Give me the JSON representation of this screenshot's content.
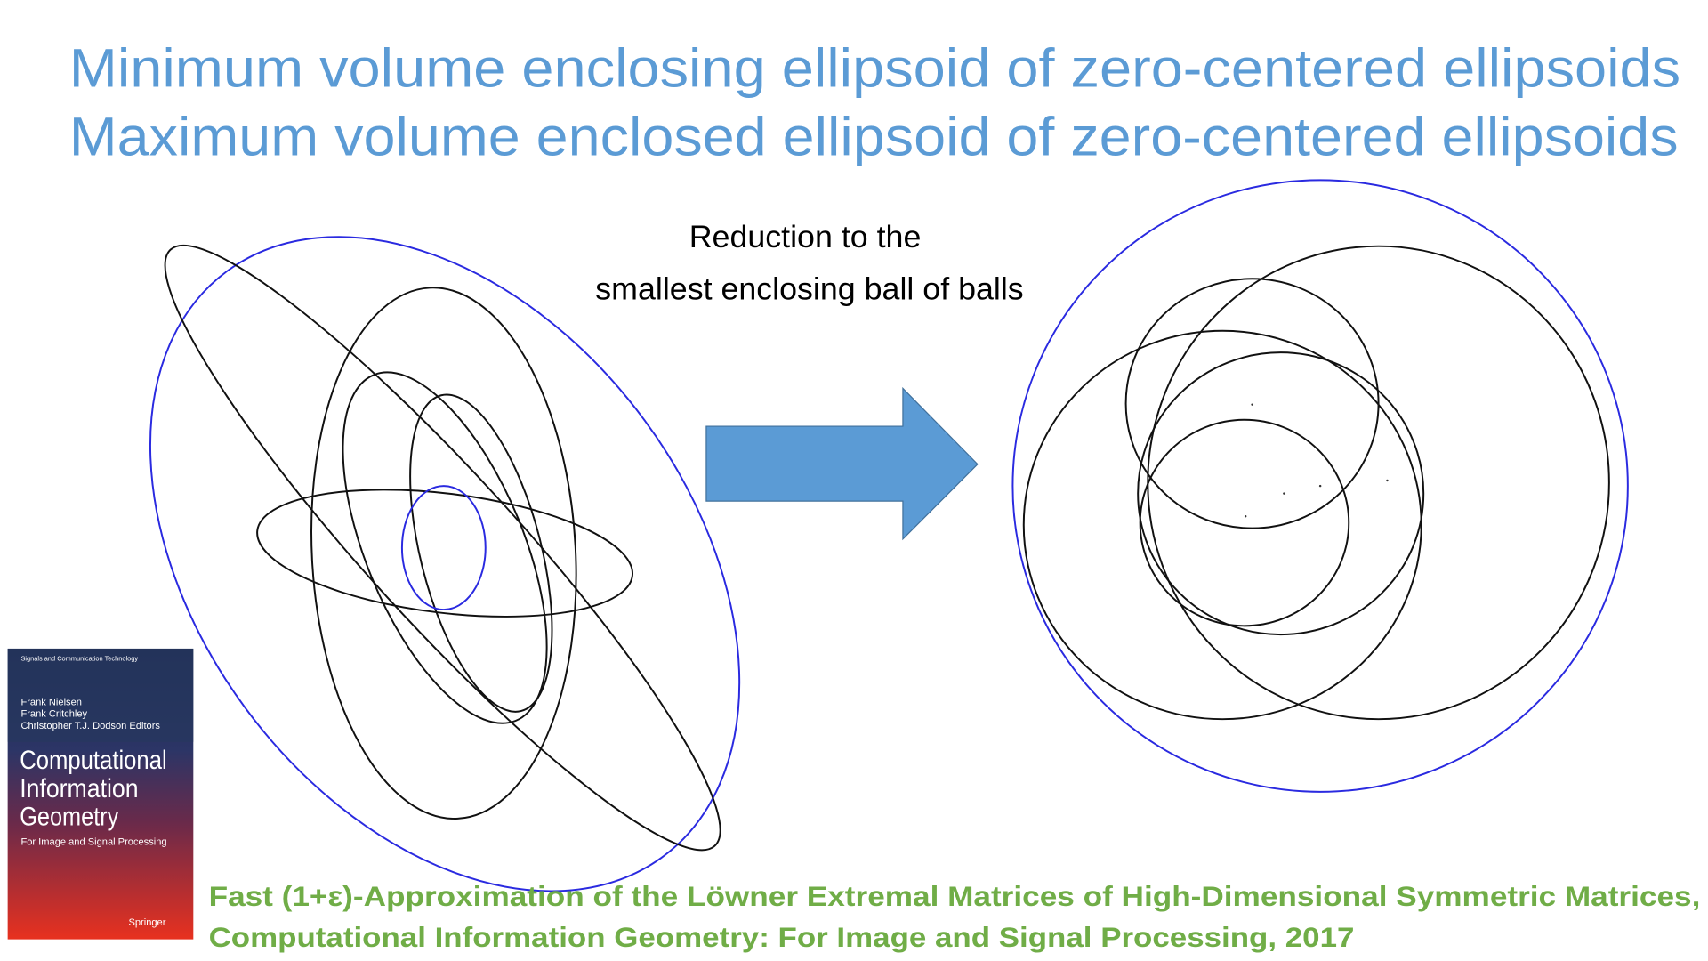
{
  "header": {
    "title_lines": [
      "Minimum volume enclosing ellipsoid of zero-centered ellipsoids",
      "Maximum volume enclosed ellipsoid of zero-centered ellipsoids"
    ]
  },
  "reduction": {
    "lines": [
      "Reduction to the",
      "smallest enclosing ball of balls"
    ]
  },
  "book": {
    "series": "Signals and Communication Technology",
    "authors": [
      "Frank Nielsen",
      "Frank Critchley",
      "Christopher T.J. Dodson  Editors"
    ],
    "title_lines": [
      "Computational",
      "Information",
      "Geometry"
    ],
    "subtitle": "For Image and Signal Processing",
    "publisher": "Springer"
  },
  "citation": {
    "lines": [
      "Fast (1+ε)-Approximation of the Löwner Extremal Matrices of High-Dimensional Symmetric Matrices,",
      "Computational Information Geometry: For Image and Signal Processing, 2017"
    ]
  }
}
